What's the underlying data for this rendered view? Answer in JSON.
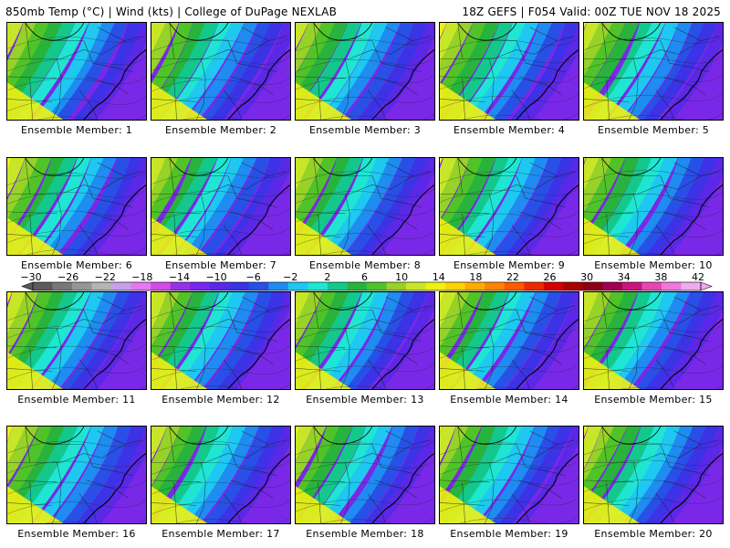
{
  "header": {
    "title_left": "850mb Temp (°C) | Wind (kts) | College of DuPage NEXLAB",
    "title_right": "18Z GEFS | F054 Valid: 00Z TUE NOV 18 2025"
  },
  "panels": [
    {
      "member": 1,
      "caption": "Ensemble Member: 1",
      "shift": 0.0
    },
    {
      "member": 2,
      "caption": "Ensemble Member: 2",
      "shift": -0.04
    },
    {
      "member": 3,
      "caption": "Ensemble Member: 3",
      "shift": -0.07
    },
    {
      "member": 4,
      "caption": "Ensemble Member: 4",
      "shift": 0.12
    },
    {
      "member": 5,
      "caption": "Ensemble Member: 5",
      "shift": 0.0
    },
    {
      "member": 6,
      "caption": "Ensemble Member: 6",
      "shift": 0.05
    },
    {
      "member": 7,
      "caption": "Ensemble Member: 7",
      "shift": -0.06
    },
    {
      "member": 8,
      "caption": "Ensemble Member: 8",
      "shift": -0.03
    },
    {
      "member": 9,
      "caption": "Ensemble Member: 9",
      "shift": 0.02
    },
    {
      "member": 10,
      "caption": "Ensemble Member: 10",
      "shift": -0.02
    },
    {
      "member": 11,
      "caption": "Ensemble Member: 11",
      "shift": 0.06
    },
    {
      "member": 12,
      "caption": "Ensemble Member: 12",
      "shift": -0.02
    },
    {
      "member": 13,
      "caption": "Ensemble Member: 13",
      "shift": -0.05
    },
    {
      "member": 14,
      "caption": "Ensemble Member: 14",
      "shift": 0.03
    },
    {
      "member": 15,
      "caption": "Ensemble Member: 15",
      "shift": -0.04
    },
    {
      "member": 16,
      "caption": "Ensemble Member: 16",
      "shift": 0.07
    },
    {
      "member": 17,
      "caption": "Ensemble Member: 17",
      "shift": -0.01
    },
    {
      "member": 18,
      "caption": "Ensemble Member: 18",
      "shift": 0.05
    },
    {
      "member": 19,
      "caption": "Ensemble Member: 19",
      "shift": 0.0
    },
    {
      "member": 20,
      "caption": "Ensemble Member: 20",
      "shift": 0.04
    }
  ],
  "colorbar": {
    "unit": "°C",
    "labels": [
      "−30",
      "−26",
      "−22",
      "−18",
      "−14",
      "−10",
      "−6",
      "−2",
      "2",
      "6",
      "10",
      "14",
      "18",
      "22",
      "26",
      "30",
      "34",
      "38",
      "42"
    ],
    "colors": [
      "#5a5a5a",
      "#787878",
      "#969696",
      "#b4b4b4",
      "#c8a0e6",
      "#e678f0",
      "#d24be6",
      "#9632e6",
      "#7828f0",
      "#5a28e6",
      "#3c32e6",
      "#2850e6",
      "#1e8cf0",
      "#1ec8f0",
      "#1ee6d2",
      "#14c88c",
      "#28b43c",
      "#50c328",
      "#96d228",
      "#c8e628",
      "#f0f014",
      "#ffd200",
      "#ffaa00",
      "#ff8200",
      "#ff5a00",
      "#f02800",
      "#d20000",
      "#aa0000",
      "#8c0014",
      "#a00050",
      "#c8147d",
      "#e646b4",
      "#f078dc",
      "#f0aaf0"
    ]
  }
}
